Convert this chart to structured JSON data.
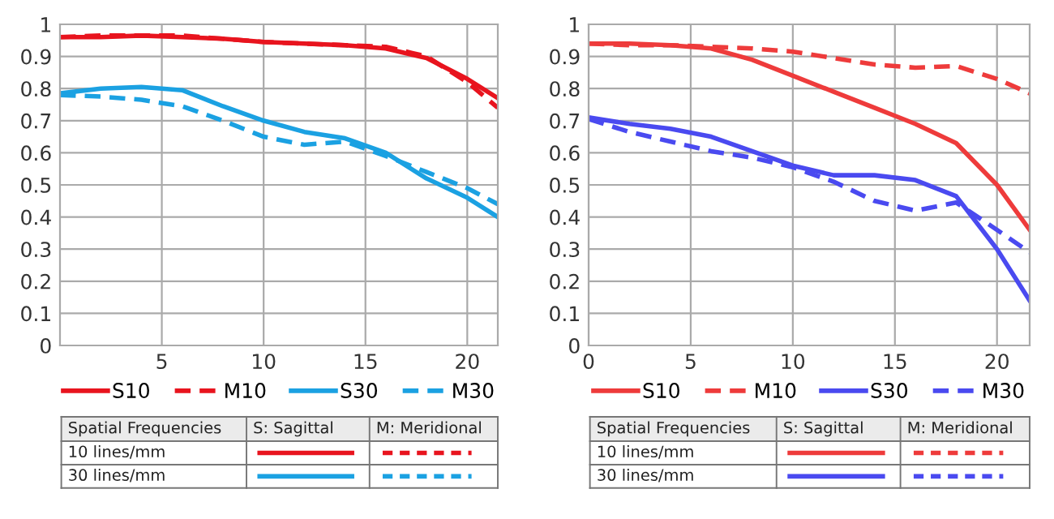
{
  "chart_data": [
    {
      "type": "line",
      "x": [
        0,
        2,
        4,
        6,
        8,
        10,
        12,
        14,
        16,
        18,
        20,
        21.5
      ],
      "series": [
        {
          "name": "S10",
          "color": "#e8141e",
          "line_style": "solid",
          "values": [
            0.96,
            0.96,
            0.965,
            0.96,
            0.955,
            0.945,
            0.94,
            0.935,
            0.925,
            0.895,
            0.83,
            0.77
          ]
        },
        {
          "name": "M10",
          "color": "#e8141e",
          "line_style": "dashed",
          "values": [
            0.96,
            0.965,
            0.965,
            0.965,
            0.955,
            0.945,
            0.94,
            0.935,
            0.93,
            0.9,
            0.82,
            0.74
          ]
        },
        {
          "name": "S30",
          "color": "#1ba1e2",
          "line_style": "solid",
          "values": [
            0.785,
            0.8,
            0.805,
            0.795,
            0.745,
            0.7,
            0.665,
            0.645,
            0.6,
            0.52,
            0.46,
            0.4
          ]
        },
        {
          "name": "M30",
          "color": "#1ba1e2",
          "line_style": "dashed",
          "values": [
            0.78,
            0.775,
            0.765,
            0.745,
            0.7,
            0.65,
            0.625,
            0.635,
            0.59,
            0.54,
            0.49,
            0.44
          ]
        }
      ],
      "xlim": [
        0,
        21.5
      ],
      "xticks": [
        5,
        10,
        15,
        20
      ],
      "ylim": [
        0,
        1
      ],
      "yticks": [
        0,
        0.1,
        0.2,
        0.3,
        0.4,
        0.5,
        0.6,
        0.7,
        0.8,
        0.9,
        1
      ],
      "grid": true,
      "legend": "bottom",
      "annotations": [
        "Spatial Frequencies",
        "S: Sagittal",
        "M: Meridional",
        "10 lines/mm",
        "30 lines/mm"
      ]
    },
    {
      "type": "line",
      "x": [
        0,
        2,
        4,
        6,
        8,
        10,
        12,
        14,
        16,
        18,
        20,
        21.6
      ],
      "series": [
        {
          "name": "S10",
          "color": "#ee3b3b",
          "line_style": "solid",
          "values": [
            0.94,
            0.94,
            0.935,
            0.925,
            0.89,
            0.84,
            0.79,
            0.74,
            0.69,
            0.63,
            0.5,
            0.36
          ]
        },
        {
          "name": "M10",
          "color": "#ee3b3b",
          "line_style": "dashed",
          "values": [
            0.94,
            0.935,
            0.935,
            0.93,
            0.925,
            0.915,
            0.895,
            0.875,
            0.865,
            0.87,
            0.83,
            0.785
          ]
        },
        {
          "name": "S30",
          "color": "#4a4af0",
          "line_style": "solid",
          "values": [
            0.71,
            0.69,
            0.675,
            0.65,
            0.605,
            0.56,
            0.53,
            0.53,
            0.515,
            0.465,
            0.3,
            0.14
          ]
        },
        {
          "name": "M30",
          "color": "#4a4af0",
          "line_style": "dashed",
          "values": [
            0.705,
            0.665,
            0.635,
            0.605,
            0.585,
            0.555,
            0.51,
            0.45,
            0.42,
            0.445,
            0.36,
            0.29
          ]
        }
      ],
      "xlim": [
        0,
        21.6
      ],
      "xticks": [
        0,
        5,
        10,
        15,
        20
      ],
      "ylim": [
        0,
        1
      ],
      "yticks": [
        0,
        0.1,
        0.2,
        0.3,
        0.4,
        0.5,
        0.6,
        0.7,
        0.8,
        0.9,
        1
      ],
      "grid": true,
      "legend": "bottom",
      "annotations": [
        "Spatial Frequencies",
        "S: Sagittal",
        "M: Meridional",
        "10 lines/mm",
        "30 lines/mm"
      ]
    }
  ]
}
